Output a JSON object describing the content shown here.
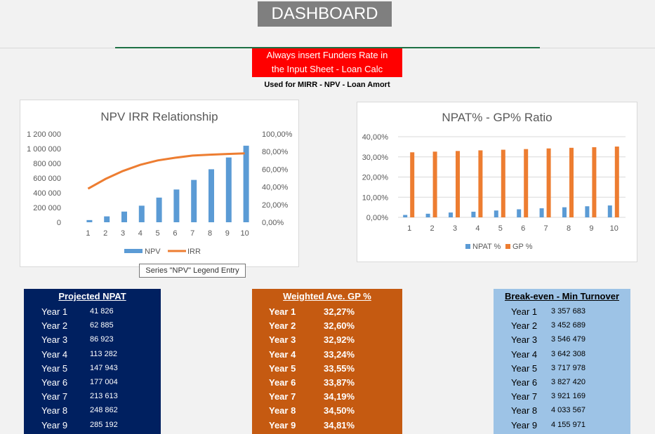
{
  "header": {
    "title": "DASHBOARD"
  },
  "notice": {
    "line1": "Always insert Funders Rate in",
    "line2": "the Input Sheet - Loan Calc",
    "sub": "Used for MIRR - NPV - Loan Amort"
  },
  "tooltip": "Series \"NPV\" Legend Entry",
  "chart_data": [
    {
      "type": "bar",
      "title": "NPV IRR Relationship",
      "categories": [
        "1",
        "2",
        "3",
        "4",
        "5",
        "6",
        "7",
        "8",
        "9",
        "10"
      ],
      "series": [
        {
          "name": "NPV",
          "type": "bar",
          "axis": "left",
          "color": "#5b9bd5",
          "values": [
            30000,
            80000,
            145000,
            225000,
            335000,
            445000,
            575000,
            720000,
            880000,
            1040000
          ]
        },
        {
          "name": "IRR",
          "type": "line",
          "axis": "right",
          "color": "#ed7d31",
          "values": [
            0.38,
            0.49,
            0.58,
            0.65,
            0.7,
            0.73,
            0.755,
            0.765,
            0.773,
            0.78
          ]
        }
      ],
      "ylim_left": [
        0,
        1200000
      ],
      "yticks_left": [
        "0",
        "200 000",
        "400 000",
        "600 000",
        "800 000",
        "1 000 000",
        "1 200 000"
      ],
      "ylim_right": [
        0,
        1
      ],
      "yticks_right": [
        "0,00%",
        "20,00%",
        "40,00%",
        "60,00%",
        "80,00%",
        "100,00%"
      ],
      "legend_position": "bottom"
    },
    {
      "type": "bar",
      "title": "NPAT% - GP% Ratio",
      "categories": [
        "1",
        "2",
        "3",
        "4",
        "5",
        "6",
        "7",
        "8",
        "9",
        "10"
      ],
      "series": [
        {
          "name": "NPAT %",
          "color": "#5b9bd5",
          "values": [
            0.012,
            0.018,
            0.024,
            0.028,
            0.034,
            0.04,
            0.045,
            0.05,
            0.055,
            0.059
          ]
        },
        {
          "name": "GP %",
          "color": "#ed7d31",
          "values": [
            0.3227,
            0.326,
            0.3292,
            0.3324,
            0.3355,
            0.3387,
            0.3419,
            0.345,
            0.3481,
            0.3512
          ]
        }
      ],
      "ylim": [
        0,
        0.4
      ],
      "yticks": [
        "0,00%",
        "10,00%",
        "20,00%",
        "30,00%",
        "40,00%"
      ],
      "legend_position": "bottom"
    }
  ],
  "panels": {
    "npat": {
      "title": "Projected NPAT",
      "rows": [
        {
          "label": "Year 1",
          "value": "41 826"
        },
        {
          "label": "Year 2",
          "value": "62 885"
        },
        {
          "label": "Year 3",
          "value": "86 923"
        },
        {
          "label": "Year 4",
          "value": "113 282"
        },
        {
          "label": "Year 5",
          "value": "147 943"
        },
        {
          "label": "Year 6",
          "value": "177 004"
        },
        {
          "label": "Year 7",
          "value": "213 613"
        },
        {
          "label": "Year 8",
          "value": "248 862"
        },
        {
          "label": "Year 9",
          "value": "285 192"
        }
      ]
    },
    "gp": {
      "title": "Weighted Ave. GP %",
      "rows": [
        {
          "label": "Year 1",
          "value": "32,27%"
        },
        {
          "label": "Year 2",
          "value": "32,60%"
        },
        {
          "label": "Year 3",
          "value": "32,92%"
        },
        {
          "label": "Year 4",
          "value": "33,24%"
        },
        {
          "label": "Year 5",
          "value": "33,55%"
        },
        {
          "label": "Year 6",
          "value": "33,87%"
        },
        {
          "label": "Year 7",
          "value": "34,19%"
        },
        {
          "label": "Year 8",
          "value": "34,50%"
        },
        {
          "label": "Year 9",
          "value": "34,81%"
        }
      ]
    },
    "breakeven": {
      "title": "Break-even - Min Turnover",
      "rows": [
        {
          "label": "Year 1",
          "value": "3 357 683"
        },
        {
          "label": "Year 2",
          "value": "3 452 689"
        },
        {
          "label": "Year 3",
          "value": "3 546 479"
        },
        {
          "label": "Year 4",
          "value": "3 642 308"
        },
        {
          "label": "Year 5",
          "value": "3 717 978"
        },
        {
          "label": "Year 6",
          "value": "3 827 420"
        },
        {
          "label": "Year 7",
          "value": "3 921 169"
        },
        {
          "label": "Year 8",
          "value": "4 033 567"
        },
        {
          "label": "Year 9",
          "value": "4 155 971"
        }
      ]
    }
  }
}
